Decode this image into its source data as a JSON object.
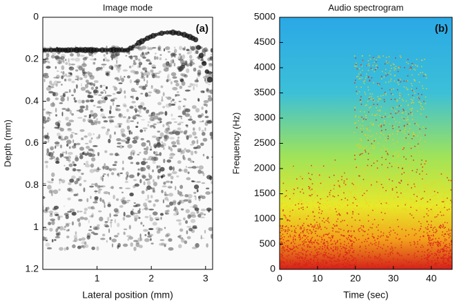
{
  "chart_data": [
    {
      "type": "image",
      "title": "Image mode",
      "annotation": "(a)",
      "x_label": "Lateral position (mm)",
      "y_label": "Depth (mm)",
      "xlim": [
        0,
        3.13
      ],
      "xticks": [
        1,
        2,
        3
      ],
      "ylim": [
        0,
        1.2
      ],
      "yticks": [
        0,
        0.2,
        0.4,
        0.6,
        0.8,
        1,
        1.2
      ],
      "y_inverted": true
    },
    {
      "type": "spectrogram",
      "title": "Audio spectrogram",
      "annotation": "(b)",
      "x_label": "Time (sec)",
      "y_label": "Frequency (Hz)",
      "xlim": [
        0,
        45.5
      ],
      "xticks": [
        0,
        10,
        20,
        30,
        40
      ],
      "ylim": [
        0,
        5000
      ],
      "yticks": [
        0,
        500,
        1000,
        1500,
        2000,
        2500,
        3000,
        3500,
        4000,
        4500,
        5000
      ],
      "y_inverted": false
    }
  ]
}
